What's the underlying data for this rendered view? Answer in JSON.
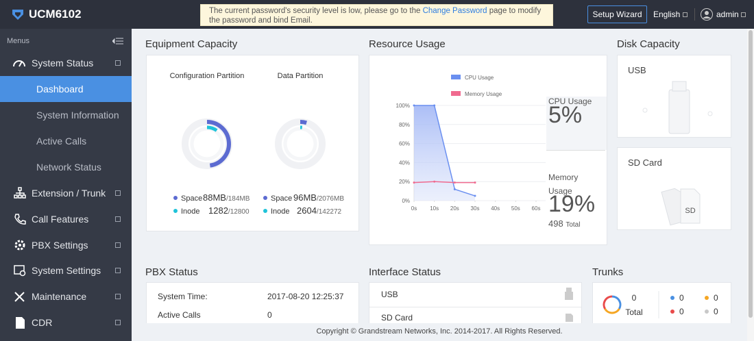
{
  "header": {
    "logo": "UCM6102",
    "notice": {
      "before": "The current password's security level is low, please go to the ",
      "link": "Change Password",
      "after": " page to modify the password and bind Email."
    },
    "setup_wizard": "Setup Wizard",
    "language": "English",
    "user": "admin"
  },
  "sidebar": {
    "title": "Menus",
    "system_status": "System Status",
    "sub_items": [
      "Dashboard",
      "System Information",
      "Active Calls",
      "Network Status"
    ],
    "items": [
      "Extension / Trunk",
      "Call Features",
      "PBX Settings",
      "System Settings",
      "Maintenance",
      "CDR"
    ]
  },
  "equipment": {
    "title": "Equipment Capacity",
    "partitions": [
      {
        "name": "Configuration Partition",
        "space_label": "Space",
        "space_used": "88MB",
        "space_total": "/184MB",
        "inode_label": "Inode",
        "inode_used": "1282",
        "inode_total": "/12800"
      },
      {
        "name": "Data Partition",
        "space_label": "Space",
        "space_used": "96MB",
        "space_total": "/2076MB",
        "inode_label": "Inode",
        "inode_used": "2604",
        "inode_total": "/142272"
      }
    ]
  },
  "resource": {
    "title": "Resource Usage",
    "cpu_label": "CPU Usage",
    "cpu_value": "5%",
    "memory_label": "Memory Usage",
    "memory_value": "19%",
    "memory_total": "498",
    "memory_total_label": "Total",
    "chart": {
      "type": "line",
      "x": [
        0,
        10,
        20,
        30
      ],
      "xlim": [
        0,
        60
      ],
      "xticks": [
        {
          "value": 0,
          "label": "0s"
        },
        {
          "value": 10,
          "label": "10s"
        },
        {
          "value": 20,
          "label": "20s"
        },
        {
          "value": 30,
          "label": "30s"
        },
        {
          "value": 40,
          "label": "40s"
        },
        {
          "value": 50,
          "label": "50s"
        },
        {
          "value": 60,
          "label": "60s"
        }
      ],
      "ylim": [
        0,
        100
      ],
      "yticks": [
        {
          "value": 0,
          "label": "0%"
        },
        {
          "value": 20,
          "label": "20%"
        },
        {
          "value": 40,
          "label": "40%"
        },
        {
          "value": 60,
          "label": "60%"
        },
        {
          "value": 80,
          "label": "80%"
        },
        {
          "value": 100,
          "label": "100%"
        }
      ],
      "grid": true,
      "series": [
        {
          "name": "CPU Usage",
          "color": "#6a8ff0",
          "values": [
            100,
            100,
            12,
            5
          ]
        },
        {
          "name": "Memory Usage",
          "color": "#f06a8f",
          "values": [
            19,
            20,
            19,
            19
          ]
        }
      ]
    }
  },
  "disk": {
    "title": "Disk Capacity",
    "usb": "USB",
    "sd": "SD Card",
    "sd_icon": "SD"
  },
  "pbx": {
    "title": "PBX Status",
    "rows": [
      [
        "System Time:",
        "2017-08-20 12:25:37"
      ],
      [
        "Active Calls",
        "0"
      ]
    ]
  },
  "interface": {
    "title": "Interface Status",
    "rows": [
      "USB",
      "SD Card"
    ]
  },
  "trunks": {
    "title": "Trunks",
    "total": "0",
    "total_label": "Total",
    "counts": [
      "0",
      "0",
      "0",
      "0"
    ],
    "colors": [
      "#4a90e2",
      "#f5a623",
      "#e94b4b",
      "#c8c8c8"
    ]
  },
  "footer": "Copyright © Grandstream Networks, Inc. 2014-2017. All Rights Reserved."
}
